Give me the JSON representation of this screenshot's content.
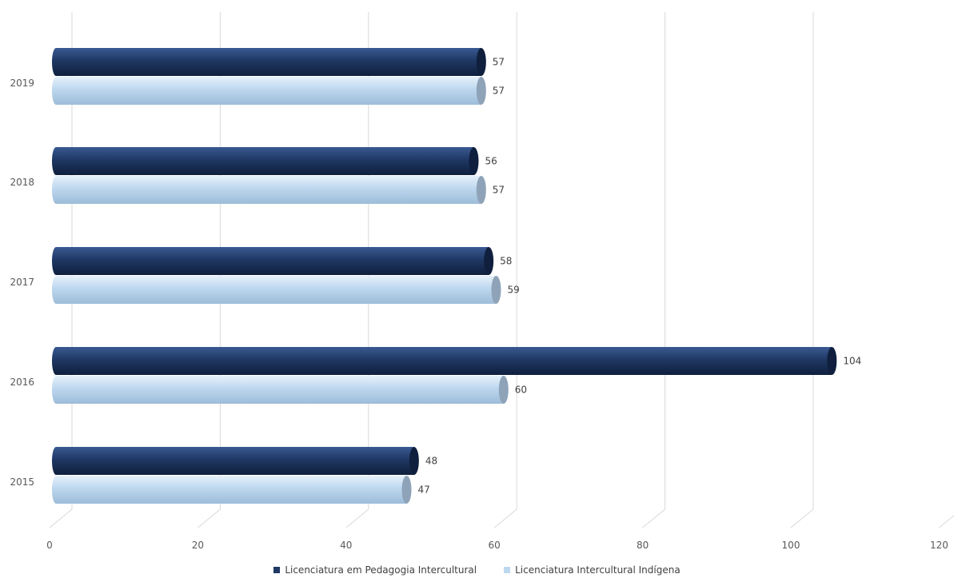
{
  "chart_data": {
    "type": "bar",
    "orientation": "horizontal",
    "categories": [
      "2019",
      "2018",
      "2017",
      "2016",
      "2015"
    ],
    "series": [
      {
        "name": "Licenciatura em Pedagogia Intercultural",
        "values": [
          57,
          56,
          58,
          104,
          48
        ],
        "color": "#1f3864"
      },
      {
        "name": "Licenciatura Intercultural Indígena",
        "values": [
          57,
          57,
          59,
          60,
          47
        ],
        "color": "#bdd7ee"
      }
    ],
    "xlim": [
      0,
      120
    ],
    "xticks": [
      "0",
      "20",
      "40",
      "60",
      "80",
      "100",
      "120"
    ],
    "grid": true,
    "legend_position": "bottom"
  }
}
